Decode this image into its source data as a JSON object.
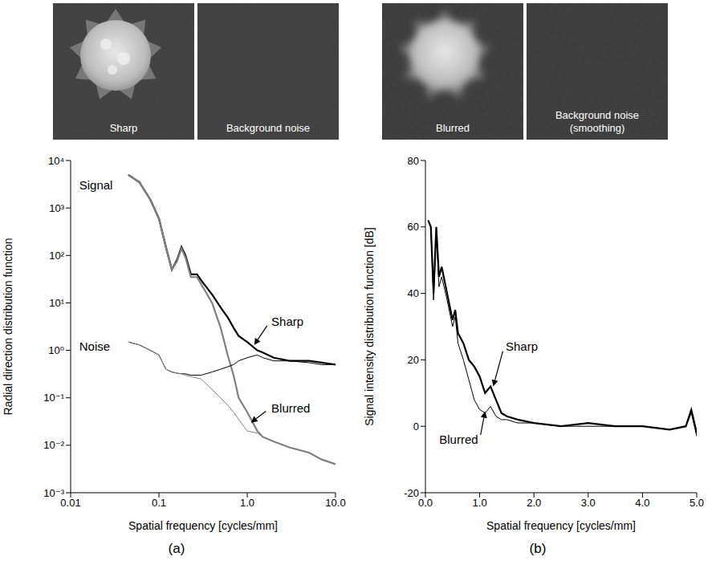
{
  "images": [
    {
      "label": "Sharp",
      "content": "signal",
      "smoothed": false
    },
    {
      "label": "Background noise",
      "content": "noise",
      "smoothed": false
    },
    {
      "label": "Blurred",
      "content": "signal",
      "smoothed": true
    },
    {
      "label": "Background noise (smoothing)",
      "content": "noise",
      "smoothed": true
    }
  ],
  "chart_data": [
    {
      "panel": "(a)",
      "type": "line",
      "log": true,
      "grid": false,
      "x_label": "Spatial frequency [cycles/mm]",
      "y_label": "Radial direction distribution function",
      "xlim": [
        0.01,
        10
      ],
      "xticks": [
        0.01,
        0.1,
        {
          "value": 1,
          "label": "1.0"
        },
        {
          "value": 10,
          "label": "10.0"
        }
      ],
      "ylim": [
        0.001,
        10000
      ],
      "yticks": [
        {
          "value": 0.001,
          "label": "10⁻³"
        },
        {
          "value": 0.01,
          "label": "10⁻²"
        },
        {
          "value": 0.1,
          "label": "10⁻¹"
        },
        {
          "value": 1,
          "label": "10⁰"
        },
        {
          "value": 10,
          "label": "10¹"
        },
        {
          "value": 100,
          "label": "10²"
        },
        {
          "value": 1000,
          "label": "10³"
        },
        {
          "value": 10000,
          "label": "10⁴"
        }
      ],
      "x": [
        0.045,
        0.06,
        0.08,
        0.1,
        0.12,
        0.14,
        0.16,
        0.18,
        0.2,
        0.23,
        0.27,
        0.3,
        0.4,
        0.5,
        0.6,
        0.7,
        0.8,
        1.0,
        1.3,
        1.5,
        2,
        3,
        5,
        7,
        10
      ],
      "series": [
        {
          "color": "#000000",
          "line_style": "thick",
          "values": [
            5000,
            3500,
            1500,
            600,
            150,
            50,
            80,
            150,
            100,
            40,
            40,
            30,
            15,
            8,
            5,
            3,
            2,
            1.5,
            1.0,
            0.9,
            0.7,
            0.6,
            0.6,
            0.55,
            0.5
          ]
        },
        {
          "color": "#808080",
          "line_style": "thick",
          "values": [
            5000,
            3500,
            1500,
            600,
            150,
            50,
            75,
            140,
            90,
            35,
            35,
            25,
            10,
            3,
            0.8,
            0.3,
            0.1,
            0.05,
            0.02,
            0.015,
            0.012,
            0.009,
            0.007,
            0.005,
            0.004
          ]
        },
        {
          "color": "#000000",
          "line_style": "thin",
          "values": [
            1.5,
            1.3,
            1.0,
            0.8,
            0.4,
            0.35,
            0.33,
            0.32,
            0.32,
            0.3,
            0.3,
            0.3,
            0.35,
            0.4,
            0.45,
            0.5,
            0.6,
            0.7,
            0.8,
            0.7,
            0.6,
            0.6,
            0.55,
            0.5,
            0.5
          ]
        },
        {
          "color": "#808080",
          "line_style": "thin",
          "values": [
            1.5,
            1.3,
            1.0,
            0.8,
            0.4,
            0.35,
            0.33,
            0.32,
            0.3,
            0.28,
            0.26,
            0.25,
            0.15,
            0.1,
            0.07,
            0.05,
            0.035,
            0.02,
            0.018,
            0.015,
            0.012,
            0.009,
            0.007,
            0.005,
            0.004
          ]
        }
      ],
      "annotations": [
        {
          "text": "Signal",
          "x": 0.012,
          "y": 3000
        },
        {
          "text": "Noise",
          "x": 0.012,
          "y": 1.2
        },
        {
          "text": "Sharp",
          "x": 1.8,
          "y": 4,
          "arrow_to": [
            1.2,
            1.3
          ]
        },
        {
          "text": "Blurred",
          "x": 1.8,
          "y": 0.06,
          "arrow_to": [
            1.1,
            0.03
          ]
        }
      ]
    },
    {
      "panel": "(b)",
      "type": "line",
      "grid": false,
      "x_label": "Spatial frequency [cycles/mm]",
      "y_label": "Signal intensity distribution function [dB]",
      "xlim": [
        0,
        5
      ],
      "xticks": [
        {
          "value": 0,
          "label": "0.0"
        },
        {
          "value": 1,
          "label": "1.0"
        },
        {
          "value": 2,
          "label": "2.0"
        },
        {
          "value": 3,
          "label": "3.0"
        },
        {
          "value": 4,
          "label": "4.0"
        },
        {
          "value": 5,
          "label": "5.0"
        }
      ],
      "ylim": [
        -20,
        80
      ],
      "yticks": [
        -20,
        0,
        20,
        40,
        60,
        80
      ],
      "x": [
        0.05,
        0.1,
        0.15,
        0.2,
        0.25,
        0.3,
        0.4,
        0.5,
        0.55,
        0.6,
        0.7,
        0.8,
        0.9,
        1.0,
        1.1,
        1.2,
        1.3,
        1.4,
        1.5,
        1.7,
        2.0,
        2.5,
        3.0,
        3.5,
        4.0,
        4.5,
        4.8,
        4.9,
        5.0
      ],
      "series": [
        {
          "color": "#000000",
          "line_style": "thick",
          "values": [
            62,
            60,
            40,
            60,
            45,
            48,
            40,
            32,
            35,
            28,
            25,
            20,
            18,
            15,
            10,
            12,
            8,
            4,
            3,
            2,
            1,
            0,
            1,
            0,
            0,
            -1,
            0,
            5,
            -2
          ]
        },
        {
          "color": "#000000",
          "line_style": "thin",
          "values": [
            62,
            60,
            38,
            58,
            42,
            45,
            38,
            30,
            33,
            25,
            20,
            14,
            8,
            5,
            4,
            6,
            3,
            2,
            2,
            1,
            1,
            0,
            0,
            0,
            0,
            -1,
            0,
            4,
            -3
          ]
        }
      ],
      "annotations": [
        {
          "text": "Sharp",
          "x": 1.45,
          "y": 24,
          "arrow_to": [
            1.25,
            12
          ]
        },
        {
          "text": "Blurred",
          "x": 1.0,
          "y": -4,
          "arrow_to": [
            1.1,
            4.5
          ]
        }
      ]
    }
  ]
}
